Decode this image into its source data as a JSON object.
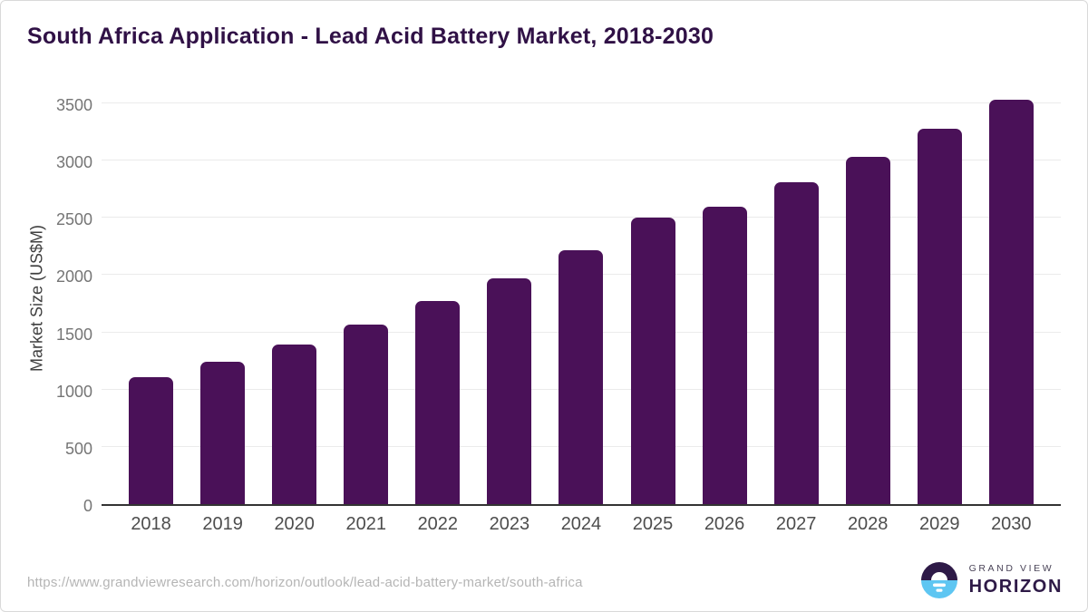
{
  "title": "South Africa Application - Lead Acid Battery Market, 2018-2030",
  "chart_data": {
    "type": "bar",
    "title": "South Africa Application - Lead Acid Battery Market, 2018-2030",
    "categories": [
      "2018",
      "2019",
      "2020",
      "2021",
      "2022",
      "2023",
      "2024",
      "2025",
      "2026",
      "2027",
      "2028",
      "2029",
      "2030"
    ],
    "values": [
      1110,
      1245,
      1395,
      1570,
      1770,
      1975,
      2220,
      2505,
      2595,
      2810,
      3035,
      3280,
      3530
    ],
    "xlabel": "",
    "ylabel": "Market Size (US$M)",
    "ylim": [
      0,
      3500
    ],
    "yticks": [
      0,
      500,
      1000,
      1500,
      2000,
      2500,
      3000,
      3500
    ],
    "grid": true,
    "legend": "none",
    "bar_color": "#4a1158"
  },
  "colors": {
    "title": "#301146",
    "bar": "#4a1158",
    "gridline": "#ebebeb",
    "axis_line": "#333333",
    "ytick_label": "#757575",
    "xtick_label": "#4d4d4d",
    "url_text": "#b5b5b5",
    "logo_purple": "#2e1a47",
    "logo_blue": "#5ec6f2"
  },
  "footer": {
    "source_url": "https://www.grandviewresearch.com/horizon/outlook/lead-acid-battery-market/south-africa",
    "logo": {
      "line1": "GRAND VIEW",
      "line2": "HORIZON"
    }
  }
}
